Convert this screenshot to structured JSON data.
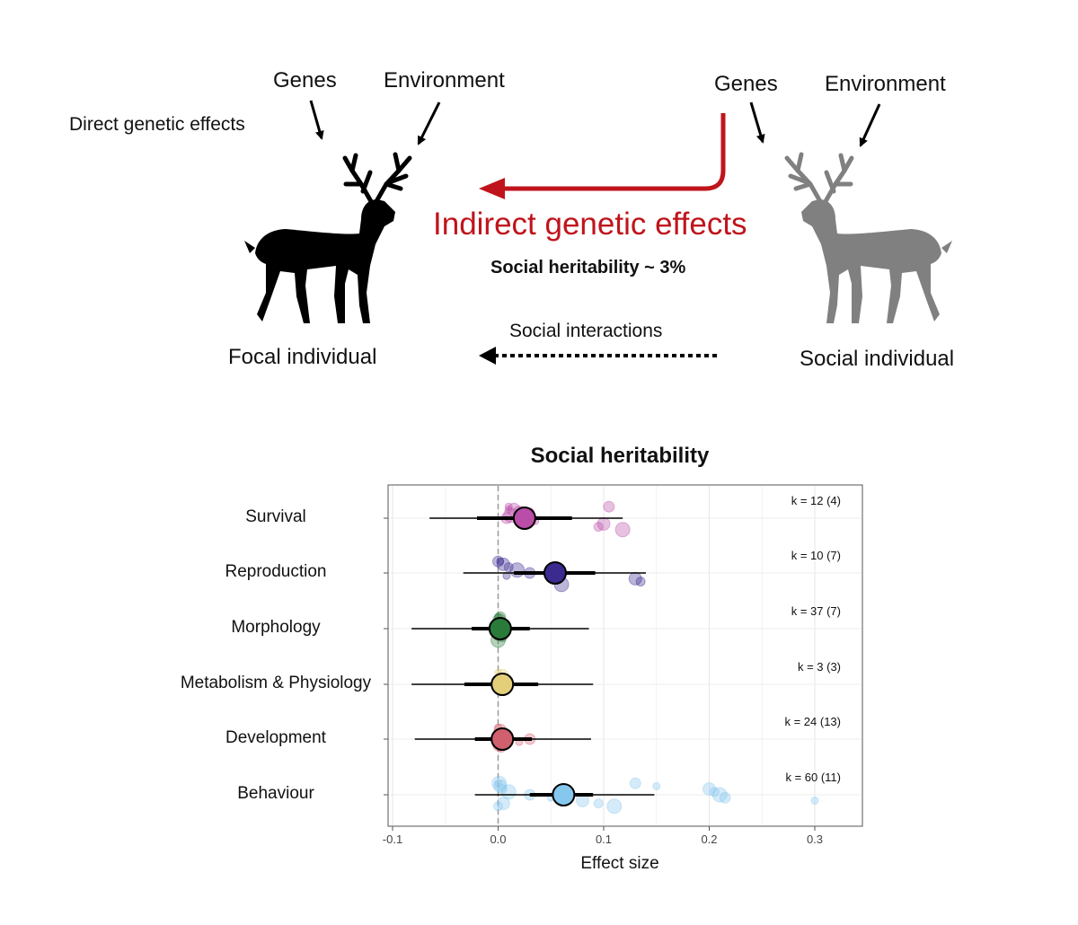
{
  "diagram": {
    "left_genes": "Genes",
    "left_environment": "Environment",
    "direct_effects": "Direct genetic effects",
    "focal_individual": "Focal individual",
    "right_genes": "Genes",
    "right_environment": "Environment",
    "social_individual": "Social individual",
    "indirect_effects": "Indirect genetic effects",
    "social_heritability_note": "Social heritability ~ 3%",
    "social_interactions": "Social interactions",
    "focal_color": "#000000",
    "social_color": "#808080",
    "arrow_color": "#c0141c"
  },
  "chart_data": {
    "type": "forest",
    "title": "Social heritability",
    "xlabel": "Effect size",
    "ylabel": "",
    "xlim": [
      -0.1,
      0.35
    ],
    "xticks": [
      "-0.1",
      "0.0",
      "0.1",
      "0.2",
      "0.3"
    ],
    "xtick_values": [
      -0.1,
      0.0,
      0.1,
      0.2,
      0.3
    ],
    "reference_line": 0.0,
    "grid": true,
    "categories": [
      {
        "name": "Survival",
        "estimate": 0.025,
        "ci": [
          -0.02,
          0.07
        ],
        "pi": [
          -0.065,
          0.118
        ],
        "k_label": "k = 12 (4)",
        "color": "#b94da8",
        "points": [
          0.01,
          0.015,
          0.03,
          0.012,
          0.008,
          0.035,
          0.1,
          0.095,
          0.118,
          0.105,
          0.01,
          0.02
        ]
      },
      {
        "name": "Reproduction",
        "estimate": 0.054,
        "ci": [
          0.015,
          0.092
        ],
        "pi": [
          -0.033,
          0.14
        ],
        "k_label": "k = 10 (7)",
        "color": "#3b2a8f",
        "points": [
          0.002,
          0.005,
          0.01,
          0.018,
          0.03,
          0.008,
          0.13,
          0.135,
          0.06,
          0.0
        ]
      },
      {
        "name": "Morphology",
        "estimate": 0.002,
        "ci": [
          -0.025,
          0.03
        ],
        "pi": [
          -0.082,
          0.086
        ],
        "k_label": "k = 37 (7)",
        "color": "#2a7a3a",
        "points": [
          0.0,
          0.001,
          0.002,
          0.003,
          0.0,
          0.002,
          0.001,
          0.004,
          0.0,
          0.002
        ]
      },
      {
        "name": "Metabolism & Physiology",
        "estimate": 0.004,
        "ci": [
          -0.032,
          0.038
        ],
        "pi": [
          -0.082,
          0.09
        ],
        "k_label": "k = 3 (3)",
        "color": "#e3cf79",
        "points": [
          0.0,
          0.004,
          0.008
        ]
      },
      {
        "name": "Development",
        "estimate": 0.004,
        "ci": [
          -0.022,
          0.032
        ],
        "pi": [
          -0.079,
          0.088
        ],
        "k_label": "k = 24 (13)",
        "color": "#d0606e",
        "points": [
          0.0,
          0.002,
          0.004,
          0.006,
          0.03,
          0.02,
          0.001,
          0.003
        ]
      },
      {
        "name": "Behaviour",
        "estimate": 0.062,
        "ci": [
          0.03,
          0.09
        ],
        "pi": [
          -0.022,
          0.148
        ],
        "k_label": "k = 60 (11)",
        "color": "#86c7ee",
        "points": [
          0.0,
          0.002,
          0.004,
          0.01,
          0.03,
          0.05,
          0.08,
          0.095,
          0.11,
          0.13,
          0.15,
          0.2,
          0.205,
          0.21,
          0.215,
          0.3,
          0.005,
          0.0,
          0.001
        ]
      }
    ]
  }
}
